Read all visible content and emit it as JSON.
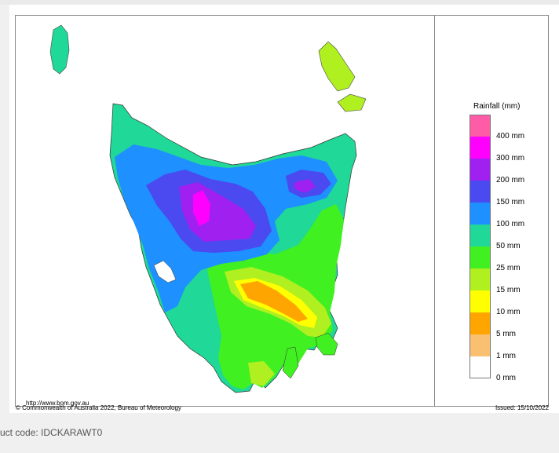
{
  "map": {
    "legend_title": "Rainfall (mm)",
    "legend": [
      {
        "label": "400 mm",
        "color": "#ff5ca8"
      },
      {
        "label": "300 mm",
        "color": "#ff00ff"
      },
      {
        "label": "200 mm",
        "color": "#a020f0"
      },
      {
        "label": "150 mm",
        "color": "#4a4af0"
      },
      {
        "label": "100 mm",
        "color": "#1e90ff"
      },
      {
        "label": "50 mm",
        "color": "#20d898"
      },
      {
        "label": "25 mm",
        "color": "#40f020"
      },
      {
        "label": "15 mm",
        "color": "#b0f020"
      },
      {
        "label": "10 mm",
        "color": "#ffff00"
      },
      {
        "label": "5 mm",
        "color": "#ffa500"
      },
      {
        "label": "1 mm",
        "color": "#f8c070"
      },
      {
        "label": "0 mm",
        "color": "#ffffff"
      }
    ],
    "url": "http://www.bom.gov.au",
    "copyright": "© Commonwealth of Australia 2022, Bureau of Meteorology",
    "issued": "Issued: 15/10/2022"
  },
  "footer": {
    "product_code": "uct code: IDCKARAWT0"
  }
}
